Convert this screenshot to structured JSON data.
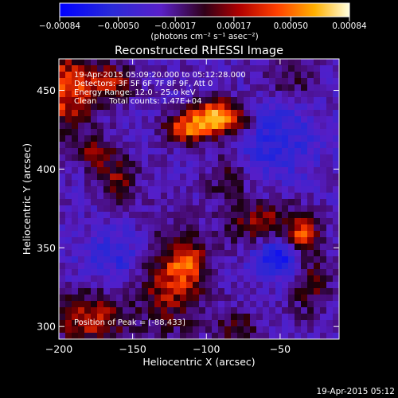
{
  "chart_data": {
    "type": "heatmap",
    "title": "Reconstructed RHESSI Image",
    "xlabel": "Heliocentric X (arcsec)",
    "ylabel": "Heliocentric Y (arcsec)",
    "x_range": [
      -200,
      -10
    ],
    "y_range": [
      292,
      470
    ],
    "x_ticks": [
      -200,
      -150,
      -100,
      -50
    ],
    "y_ticks": [
      300,
      350,
      400,
      450
    ],
    "x_tick_labels": [
      "−200",
      "−150",
      "−100",
      "−50"
    ],
    "y_tick_labels": [
      "300",
      "350",
      "400",
      "450"
    ],
    "colorbar": {
      "range": [
        -0.00084,
        0.00084
      ],
      "ticks": [
        -0.00084,
        -0.0005,
        -0.00017,
        0.00017,
        0.0005,
        0.00084
      ],
      "tick_labels": [
        "−0.00084",
        "−0.00050",
        "−0.00017",
        "0.00017",
        "0.00050",
        "0.00084"
      ],
      "units_text": "(photons cm⁻² s⁻¹ asec⁻²)"
    },
    "annotations": [
      "19-Apr-2015 05:09:20.000 to 05:12:28.000",
      "Detectors: 3F 5F 6F 7F 8F 9F, Att 0",
      "Energy Range: 12.0 - 25.0 keV",
      "Clean     Total counts: 1.47E+04"
    ],
    "peak_label": "Position of Peak = [-88,433]",
    "peak": {
      "x": -88,
      "y": 433
    },
    "sources": [
      {
        "x": -92,
        "y": 432,
        "sx": 14,
        "sy": 8,
        "amp": 1.0
      },
      {
        "x": -115,
        "y": 425,
        "sx": 10,
        "sy": 6,
        "amp": 0.55
      },
      {
        "x": -195,
        "y": 450,
        "sx": 14,
        "sy": 20,
        "amp": 0.6
      },
      {
        "x": -165,
        "y": 455,
        "sx": 12,
        "sy": 8,
        "amp": 0.45
      },
      {
        "x": -160,
        "y": 392,
        "sx": 9,
        "sy": 12,
        "amp": 0.4
      },
      {
        "x": -175,
        "y": 410,
        "sx": 8,
        "sy": 7,
        "amp": 0.35
      },
      {
        "x": -125,
        "y": 330,
        "sx": 16,
        "sy": 22,
        "amp": 0.5
      },
      {
        "x": -112,
        "y": 340,
        "sx": 8,
        "sy": 10,
        "amp": 0.4
      },
      {
        "x": -60,
        "y": 365,
        "sx": 18,
        "sy": 10,
        "amp": 0.45
      },
      {
        "x": -35,
        "y": 357,
        "sx": 6,
        "sy": 7,
        "amp": 0.65
      },
      {
        "x": -30,
        "y": 330,
        "sx": 10,
        "sy": 16,
        "amp": 0.35
      },
      {
        "x": -178,
        "y": 305,
        "sx": 16,
        "sy": 12,
        "amp": 0.55
      },
      {
        "x": -80,
        "y": 300,
        "sx": 12,
        "sy": 8,
        "amp": 0.3
      },
      {
        "x": -45,
        "y": 455,
        "sx": 14,
        "sy": 10,
        "amp": 0.25
      },
      {
        "x": -85,
        "y": 395,
        "sx": 10,
        "sy": 12,
        "amp": 0.3
      }
    ],
    "negative_regions": [
      {
        "x": -50,
        "y": 345,
        "sx": 12,
        "sy": 10,
        "amp": 0.6
      },
      {
        "x": -55,
        "y": 420,
        "sx": 22,
        "sy": 18,
        "amp": 0.35
      },
      {
        "x": -160,
        "y": 345,
        "sx": 18,
        "sy": 14,
        "amp": 0.3
      }
    ]
  },
  "footer": {
    "timestamp": "19-Apr-2015 05:12"
  }
}
